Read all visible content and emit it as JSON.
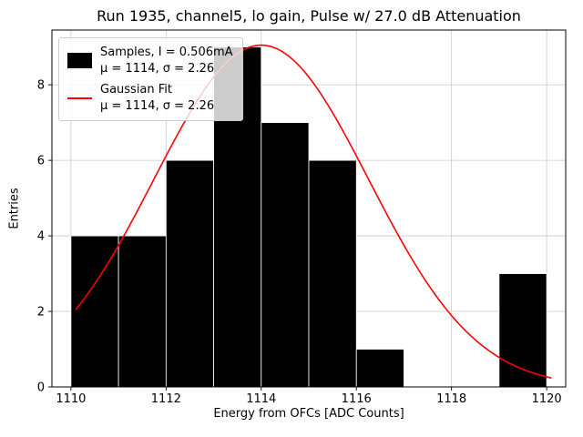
{
  "title": "Run 1935, channel5, lo gain, Pulse w/ 27.0 dB Attenuation",
  "chart_data": {
    "type": "bar",
    "subtype": "histogram",
    "title": "Run 1935, channel5, lo gain, Pulse w/ 27.0 dB Attenuation",
    "xlabel": "Energy from OFCs [ADC Counts]",
    "ylabel": "Entries",
    "xlim": [
      1109.6,
      1120.4
    ],
    "ylim": [
      0,
      9.45
    ],
    "xticks": [
      1110,
      1112,
      1114,
      1116,
      1118,
      1120
    ],
    "yticks": [
      0,
      2,
      4,
      6,
      8
    ],
    "grid": true,
    "grid_color": "#c9c9c9",
    "bin_edges": [
      1110,
      1111,
      1112,
      1113,
      1114,
      1115,
      1116,
      1117,
      1118,
      1119,
      1120
    ],
    "counts": [
      4,
      4,
      6,
      9,
      7,
      6,
      1,
      0,
      0,
      3
    ],
    "bar_color": "#000000",
    "bar_edge_color": "#ffffff",
    "fit": {
      "type": "gaussian",
      "mu": 1114,
      "sigma": 2.26,
      "amplitude": 9.05,
      "color": "#ff0000",
      "x_range": [
        1110.1,
        1120.1
      ]
    },
    "legend": {
      "position": "upper-left",
      "entries": [
        {
          "swatch": "black-rect",
          "lines": [
            "Samples, I = 0.506mA",
            "μ = 1114, σ = 2.26"
          ]
        },
        {
          "swatch": "red-line",
          "lines": [
            "Gaussian Fit",
            "μ = 1114, σ = 2.26"
          ]
        }
      ]
    }
  }
}
